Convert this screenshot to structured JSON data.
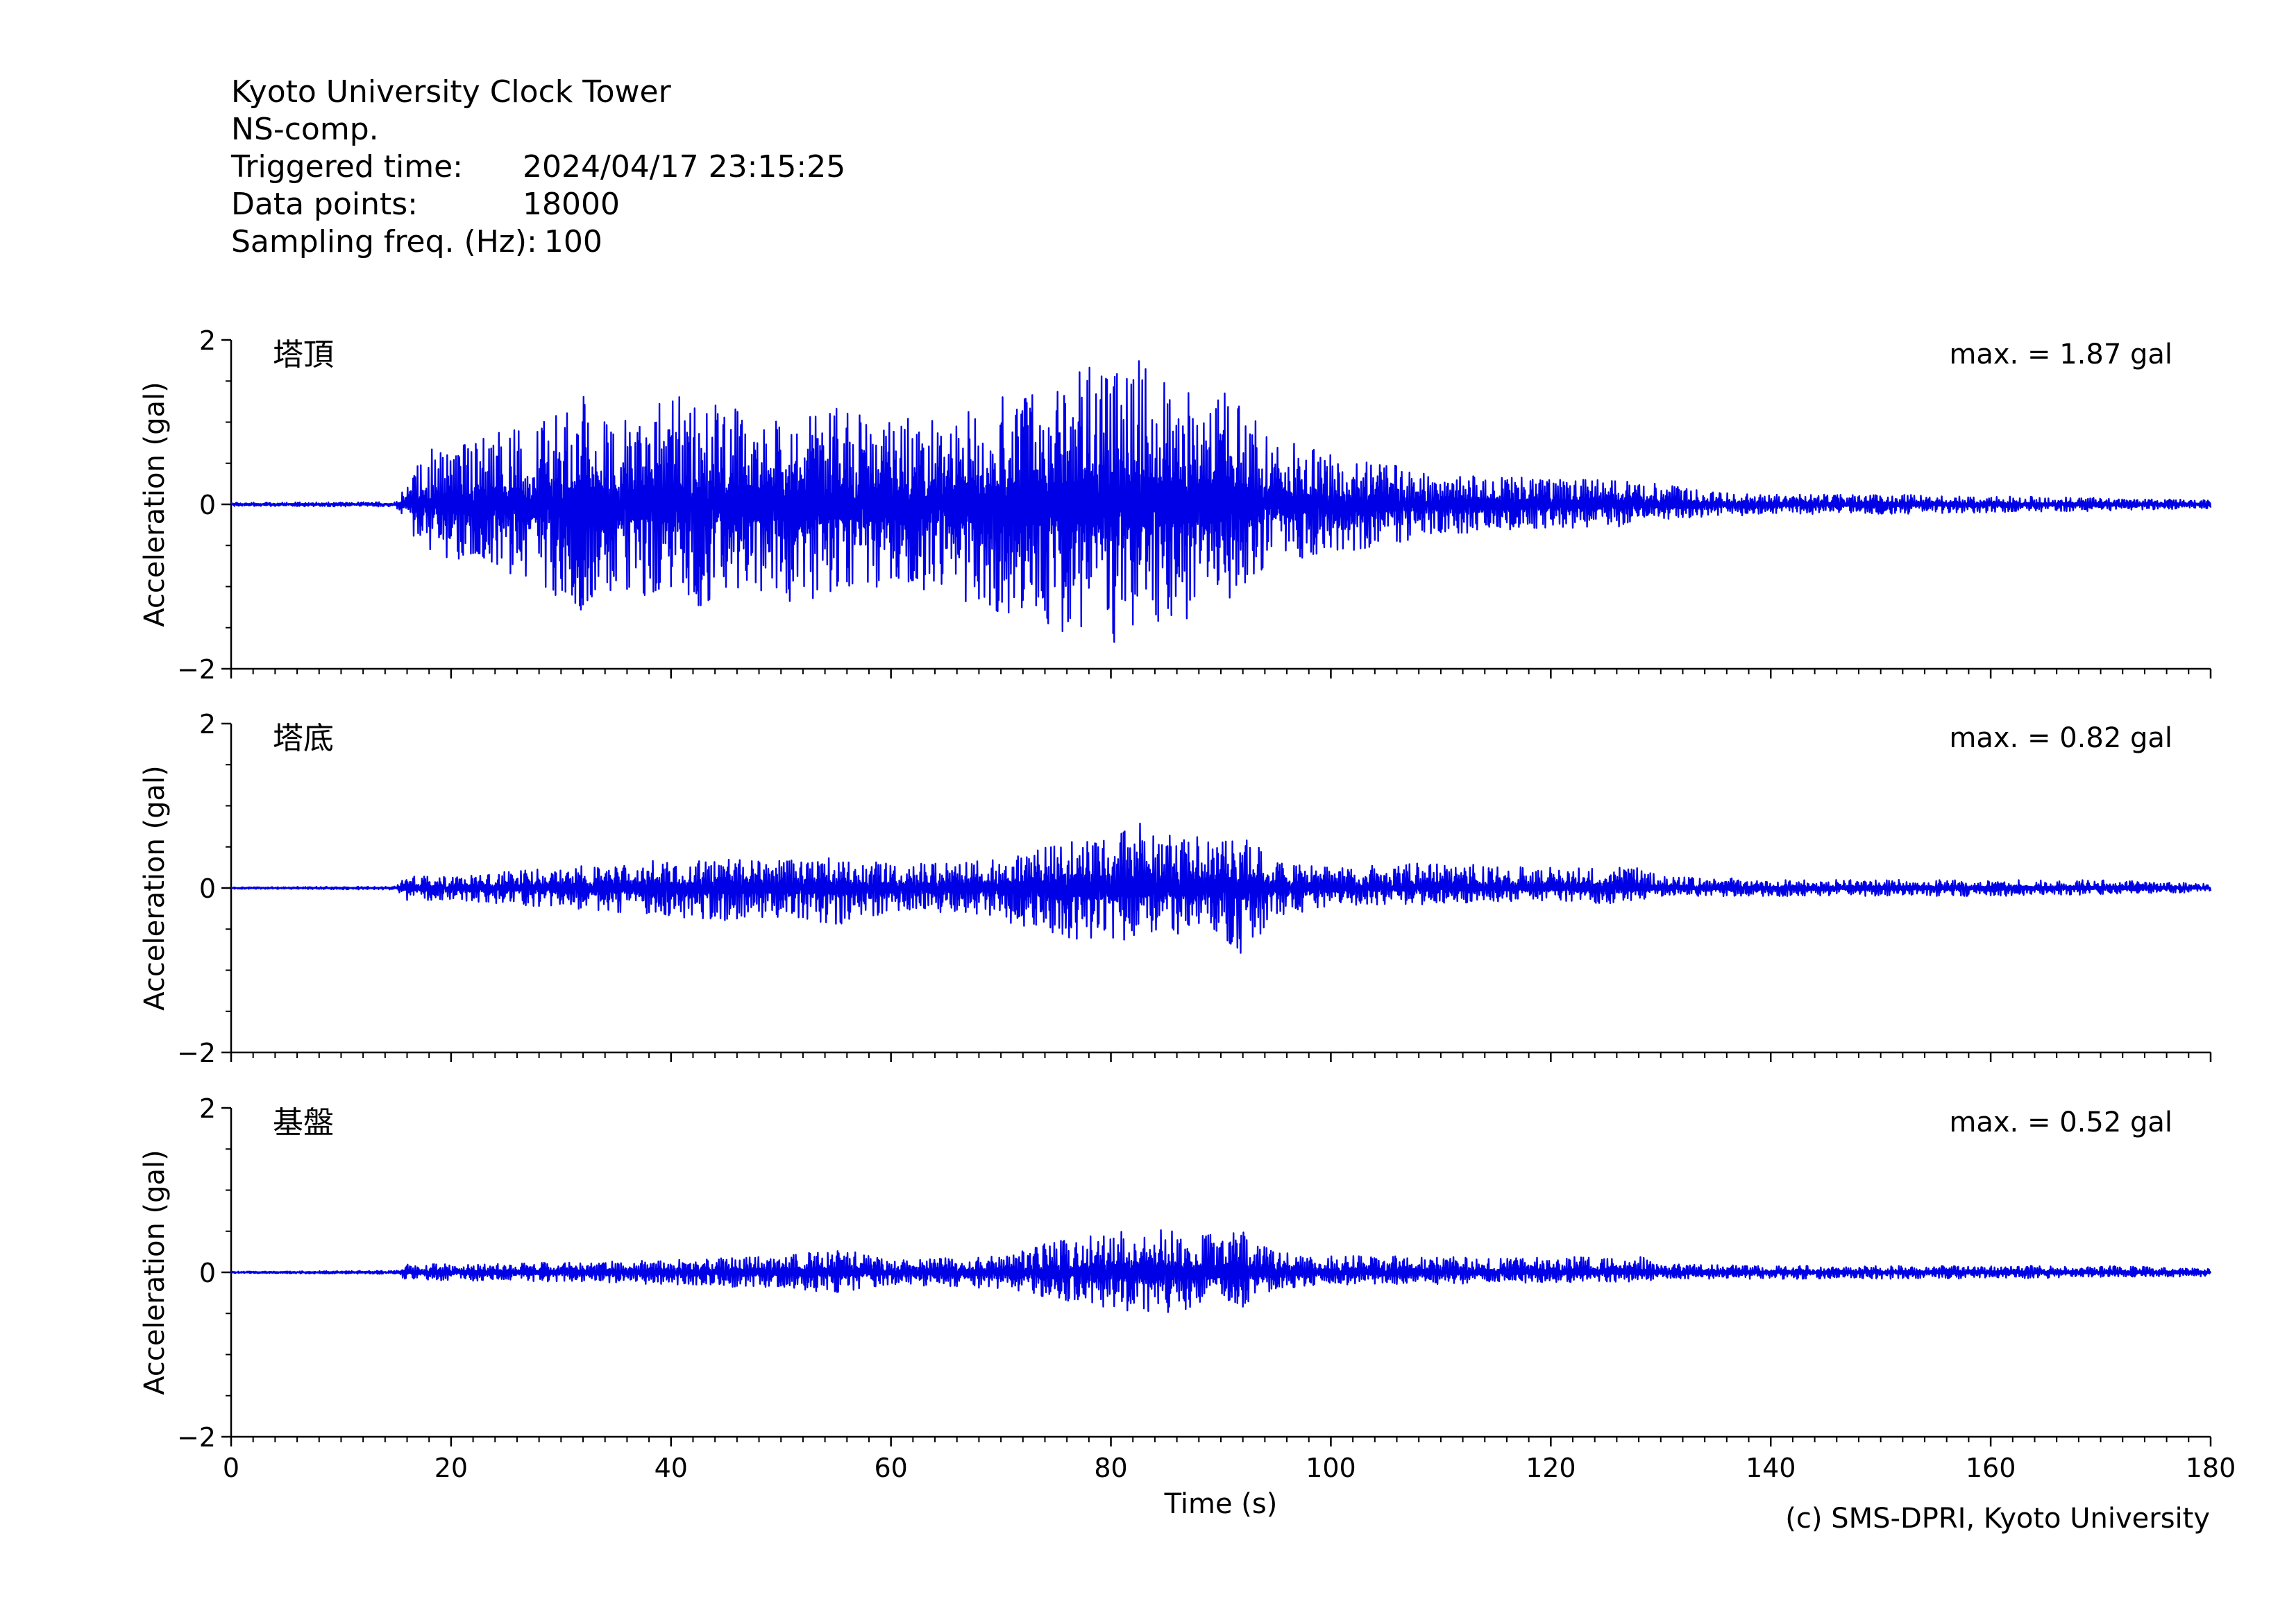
{
  "header": {
    "station": "Kyoto University Clock Tower",
    "component": "NS-comp.",
    "triggered_label": "Triggered time:",
    "triggered_value": "2024/04/17 23:15:25",
    "points_label": "Data points:",
    "points_value": "18000",
    "freq_label": "Sampling freq. (Hz):",
    "freq_value": "100"
  },
  "footer": {
    "copyright": "(c) SMS-DPRI, Kyoto University"
  },
  "style": {
    "trace_color": "#0000e6",
    "axis_color": "#000000"
  },
  "chart_data": [
    {
      "type": "line",
      "panel_label": "塔頂",
      "annotation": "max. = 1.87 gal",
      "ylabel": "Acceleration (gal)",
      "xlabel": "",
      "ylim": [
        -2,
        2
      ],
      "yticks": [
        -2,
        0,
        2
      ],
      "xlim": [
        0,
        180
      ],
      "envelope": {
        "x": [
          0,
          15,
          16,
          18,
          20,
          25,
          30,
          32,
          35,
          40,
          45,
          50,
          55,
          60,
          65,
          70,
          75,
          77,
          80,
          82,
          85,
          90,
          95,
          100,
          105,
          110,
          115,
          120,
          125,
          130,
          135,
          140,
          150,
          160,
          170,
          180
        ],
        "upper": [
          0.02,
          0.03,
          0.3,
          0.8,
          0.7,
          0.9,
          1.1,
          1.35,
          1.0,
          1.35,
          1.2,
          1.0,
          1.2,
          1.1,
          1.0,
          1.35,
          1.4,
          1.8,
          1.5,
          1.87,
          1.5,
          1.4,
          0.9,
          0.6,
          0.5,
          0.35,
          0.35,
          0.3,
          0.3,
          0.25,
          0.15,
          0.12,
          0.12,
          0.1,
          0.08,
          0.05
        ],
        "lower": [
          -0.02,
          -0.03,
          -0.3,
          -0.7,
          -0.7,
          -0.9,
          -1.15,
          -1.3,
          -1.0,
          -1.3,
          -1.2,
          -1.2,
          -1.1,
          -1.0,
          -1.2,
          -1.5,
          -1.6,
          -1.55,
          -1.7,
          -1.85,
          -1.5,
          -1.3,
          -0.7,
          -0.6,
          -0.5,
          -0.35,
          -0.35,
          -0.3,
          -0.3,
          -0.2,
          -0.15,
          -0.12,
          -0.12,
          -0.1,
          -0.08,
          -0.05
        ]
      }
    },
    {
      "type": "line",
      "panel_label": "塔底",
      "annotation": "max. = 0.82 gal",
      "ylabel": "Acceleration (gal)",
      "xlabel": "",
      "ylim": [
        -2,
        2
      ],
      "yticks": [
        -2,
        0,
        2
      ],
      "xlim": [
        0,
        180
      ],
      "envelope": {
        "x": [
          0,
          15,
          16,
          20,
          25,
          30,
          35,
          40,
          45,
          50,
          55,
          60,
          65,
          70,
          73,
          75,
          80,
          83,
          85,
          90,
          92,
          95,
          100,
          105,
          110,
          120,
          125,
          128,
          130,
          140,
          150,
          160,
          170,
          180
        ],
        "upper": [
          0.01,
          0.02,
          0.15,
          0.15,
          0.2,
          0.25,
          0.3,
          0.35,
          0.35,
          0.35,
          0.4,
          0.3,
          0.3,
          0.35,
          0.5,
          0.55,
          0.6,
          0.82,
          0.65,
          0.6,
          0.65,
          0.35,
          0.25,
          0.3,
          0.3,
          0.25,
          0.25,
          0.3,
          0.15,
          0.1,
          0.1,
          0.1,
          0.1,
          0.05
        ],
        "lower": [
          -0.01,
          -0.02,
          -0.15,
          -0.15,
          -0.2,
          -0.25,
          -0.3,
          -0.35,
          -0.4,
          -0.35,
          -0.45,
          -0.3,
          -0.3,
          -0.45,
          -0.5,
          -0.6,
          -0.65,
          -0.6,
          -0.55,
          -0.6,
          -0.82,
          -0.35,
          -0.25,
          -0.2,
          -0.2,
          -0.15,
          -0.2,
          -0.15,
          -0.1,
          -0.1,
          -0.1,
          -0.1,
          -0.08,
          -0.05
        ]
      }
    },
    {
      "type": "line",
      "panel_label": "基盤",
      "annotation": "max. = 0.52 gal",
      "ylabel": "Acceleration (gal)",
      "xlabel": "Time (s)",
      "ylim": [
        -2,
        2
      ],
      "yticks": [
        -2,
        0,
        2
      ],
      "xlim": [
        0,
        180
      ],
      "xticks": [
        0,
        20,
        40,
        60,
        80,
        100,
        120,
        140,
        160,
        180
      ],
      "envelope": {
        "x": [
          0,
          15,
          16,
          20,
          30,
          40,
          50,
          55,
          60,
          70,
          75,
          80,
          85,
          90,
          92,
          95,
          100,
          110,
          120,
          128,
          130,
          140,
          150,
          160,
          170,
          180
        ],
        "upper": [
          0.01,
          0.02,
          0.1,
          0.1,
          0.12,
          0.15,
          0.2,
          0.3,
          0.15,
          0.2,
          0.4,
          0.5,
          0.52,
          0.45,
          0.5,
          0.25,
          0.2,
          0.2,
          0.18,
          0.2,
          0.1,
          0.08,
          0.08,
          0.08,
          0.08,
          0.05
        ],
        "lower": [
          -0.01,
          -0.02,
          -0.1,
          -0.1,
          -0.12,
          -0.15,
          -0.2,
          -0.25,
          -0.15,
          -0.2,
          -0.35,
          -0.45,
          -0.5,
          -0.4,
          -0.45,
          -0.2,
          -0.15,
          -0.15,
          -0.12,
          -0.12,
          -0.08,
          -0.08,
          -0.08,
          -0.08,
          -0.06,
          -0.05
        ]
      }
    }
  ]
}
